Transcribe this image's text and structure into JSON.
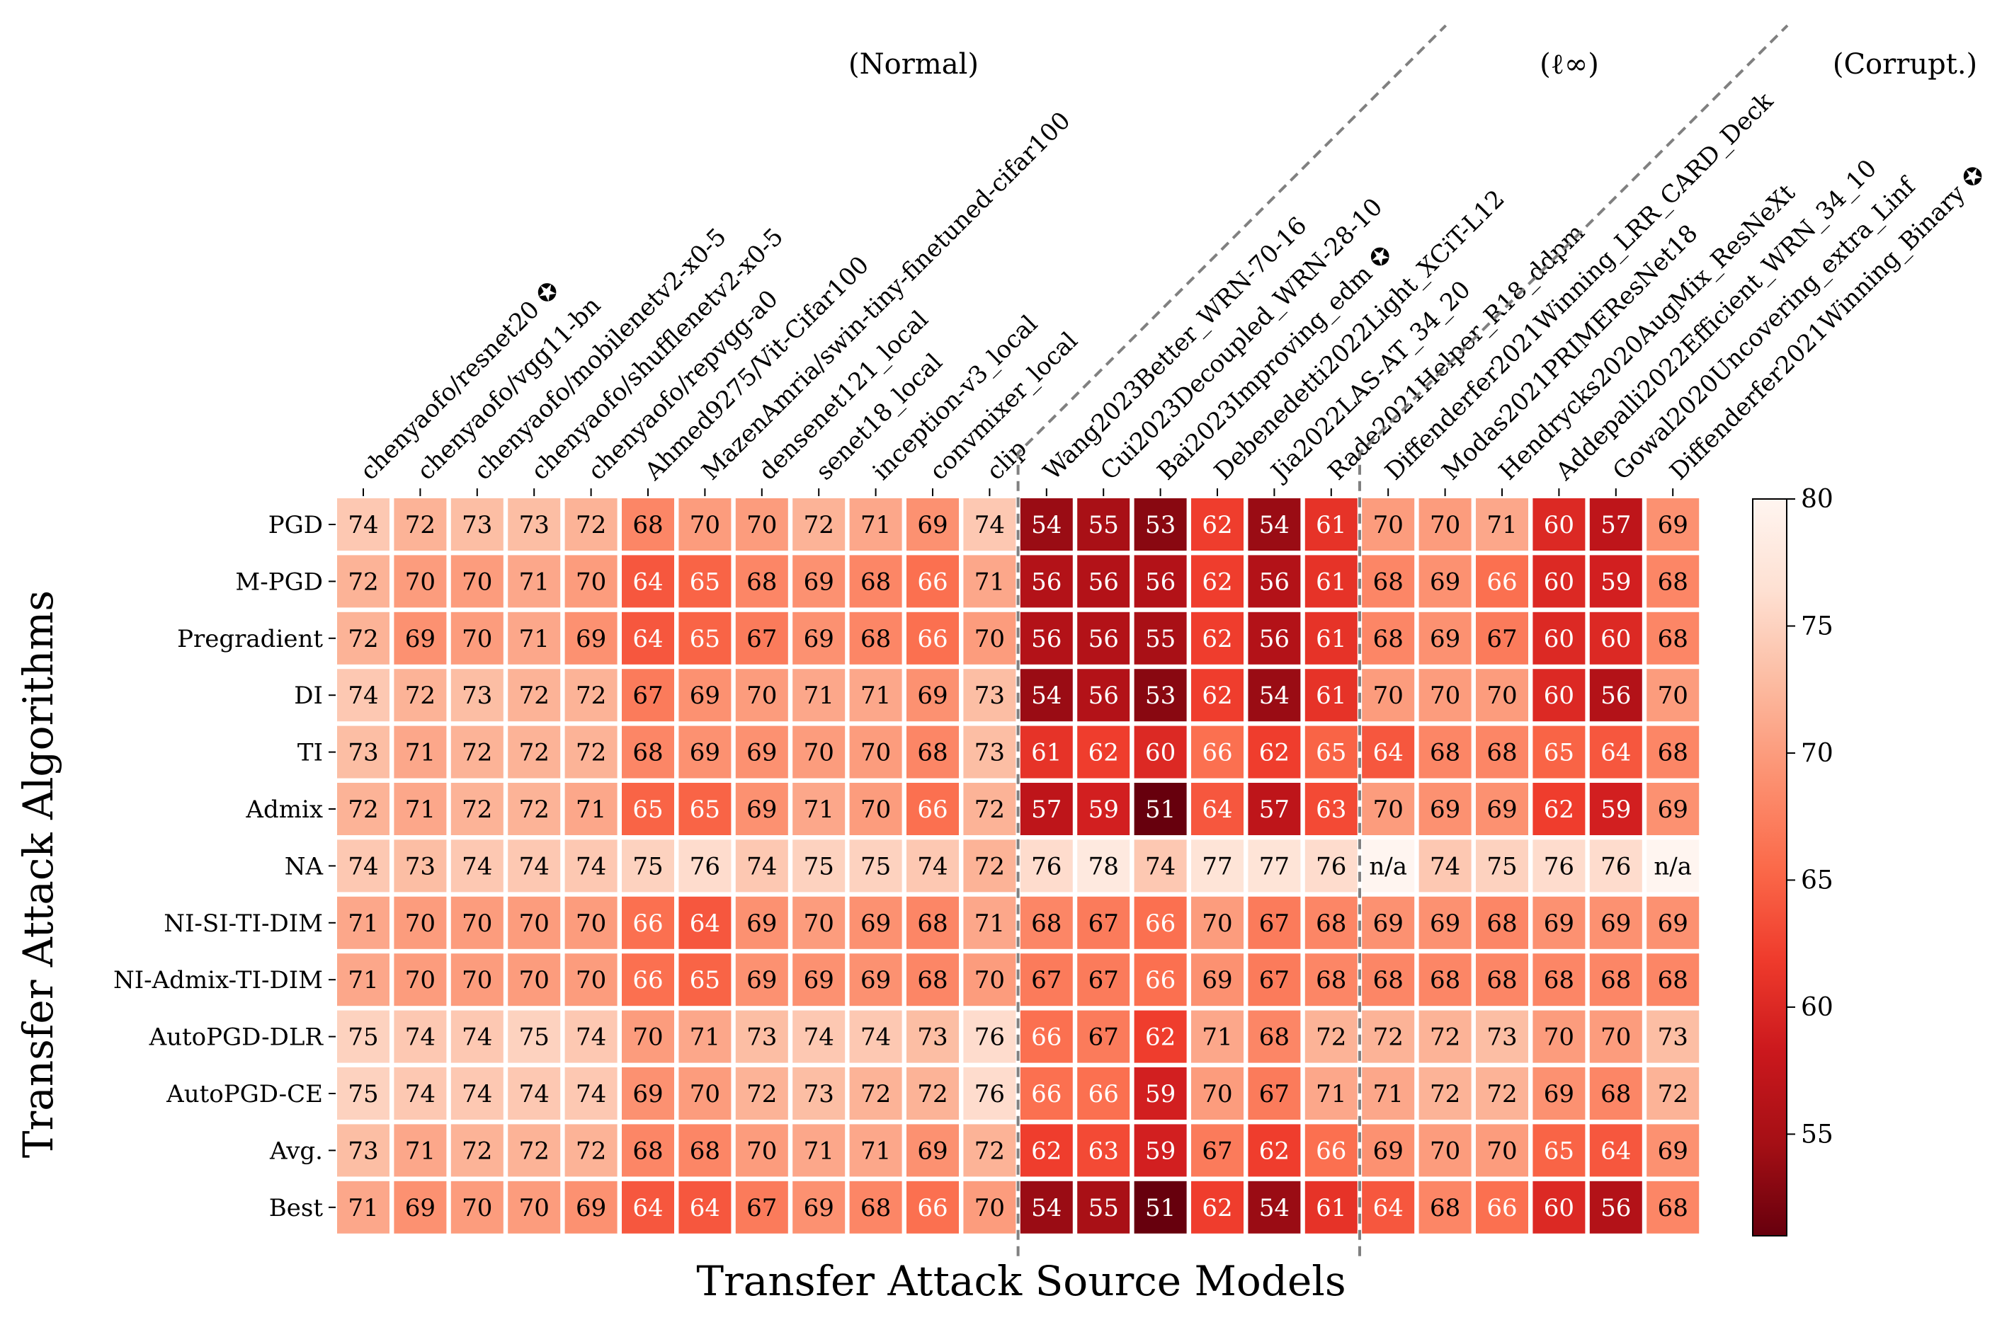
{
  "chart_data": {
    "type": "heatmap",
    "xlabel": "Transfer Attack Source Models",
    "ylabel": "Transfer Attack Algorithms",
    "colormap": "Reds_r",
    "colorbar": {
      "min": 51,
      "max": 80,
      "ticks": [
        55,
        60,
        65,
        70,
        75,
        80
      ]
    },
    "groups": [
      {
        "label": "(Normal)",
        "start": 0,
        "end": 11
      },
      {
        "label": "(ℓ∞)",
        "start": 12,
        "end": 17
      },
      {
        "label": "(Corrupt.)",
        "start": 18,
        "end": 23
      }
    ],
    "star_columns": [
      0,
      14,
      23
    ],
    "columns": [
      "chenyaofo/resnet20",
      "chenyaofo/vgg11-bn",
      "chenyaofo/mobilenetv2-x0-5",
      "chenyaofo/shufflenetv2-x0-5",
      "chenyaofo/repvgg-a0",
      "Ahmed9275/Vit-Cifar100",
      "MazenAmria/swin-tiny-finetuned-cifar100",
      "densenet121_local",
      "senet18_local",
      "inception-v3_local",
      "convmixer_local",
      "clip",
      "Wang2023Better_WRN-70-16",
      "Cui2023Decoupled_WRN-28-10",
      "Bai2023Improving_edm",
      "Debenedetti2022Light_XCiT-L12",
      "Jia2022LAS-AT_34_20",
      "Rade2021Helper_R18_ddpm",
      "Diffenderfer2021Winning_LRR_CARD_Deck",
      "Modas2021PRIMEResNet18",
      "Hendrycks2020AugMix_ResNeXt",
      "Addepalli2022Efficient_WRN_34_10",
      "Gowal2020Uncovering_extra_Linf",
      "Diffenderfer2021Winning_Binary"
    ],
    "rows": [
      "PGD",
      "M-PGD",
      "Pregradient",
      "DI",
      "TI",
      "Admix",
      "NA",
      "NI-SI-TI-DIM",
      "NI-Admix-TI-DIM",
      "AutoPGD-DLR",
      "AutoPGD-CE",
      "Avg.",
      "Best"
    ],
    "values": [
      [
        74,
        72,
        73,
        73,
        72,
        68,
        70,
        70,
        72,
        71,
        69,
        74,
        54,
        55,
        53,
        62,
        54,
        61,
        70,
        70,
        71,
        60,
        57,
        69
      ],
      [
        72,
        70,
        70,
        71,
        70,
        64,
        65,
        68,
        69,
        68,
        66,
        71,
        56,
        56,
        56,
        62,
        56,
        61,
        68,
        69,
        66,
        60,
        59,
        68
      ],
      [
        72,
        69,
        70,
        71,
        69,
        64,
        65,
        67,
        69,
        68,
        66,
        70,
        56,
        56,
        55,
        62,
        56,
        61,
        68,
        69,
        67,
        60,
        60,
        68
      ],
      [
        74,
        72,
        73,
        72,
        72,
        67,
        69,
        70,
        71,
        71,
        69,
        73,
        54,
        56,
        53,
        62,
        54,
        61,
        70,
        70,
        70,
        60,
        56,
        70
      ],
      [
        73,
        71,
        72,
        72,
        72,
        68,
        69,
        69,
        70,
        70,
        68,
        73,
        61,
        62,
        60,
        66,
        62,
        65,
        64,
        68,
        68,
        65,
        64,
        68
      ],
      [
        72,
        71,
        72,
        72,
        71,
        65,
        65,
        69,
        71,
        70,
        66,
        72,
        57,
        59,
        51,
        64,
        57,
        63,
        70,
        69,
        69,
        62,
        59,
        69
      ],
      [
        74,
        73,
        74,
        74,
        74,
        75,
        76,
        74,
        75,
        75,
        74,
        72,
        76,
        78,
        74,
        77,
        77,
        76,
        null,
        74,
        75,
        76,
        76,
        null
      ],
      [
        71,
        70,
        70,
        70,
        70,
        66,
        64,
        69,
        70,
        69,
        68,
        71,
        68,
        67,
        66,
        70,
        67,
        68,
        69,
        69,
        68,
        69,
        69,
        69
      ],
      [
        71,
        70,
        70,
        70,
        70,
        66,
        65,
        69,
        69,
        69,
        68,
        70,
        67,
        67,
        66,
        69,
        67,
        68,
        68,
        68,
        68,
        68,
        68,
        68
      ],
      [
        75,
        74,
        74,
        75,
        74,
        70,
        71,
        73,
        74,
        74,
        73,
        76,
        66,
        67,
        62,
        71,
        68,
        72,
        72,
        72,
        73,
        70,
        70,
        73
      ],
      [
        75,
        74,
        74,
        74,
        74,
        69,
        70,
        72,
        73,
        72,
        72,
        76,
        66,
        66,
        59,
        70,
        67,
        71,
        71,
        72,
        72,
        69,
        68,
        72
      ],
      [
        73,
        71,
        72,
        72,
        72,
        68,
        68,
        70,
        71,
        71,
        69,
        72,
        62,
        63,
        59,
        67,
        62,
        66,
        69,
        70,
        70,
        65,
        64,
        69
      ],
      [
        71,
        69,
        70,
        70,
        69,
        64,
        64,
        67,
        69,
        68,
        66,
        70,
        54,
        55,
        51,
        62,
        54,
        61,
        64,
        68,
        66,
        60,
        56,
        68
      ]
    ],
    "na_label": "n/a"
  }
}
